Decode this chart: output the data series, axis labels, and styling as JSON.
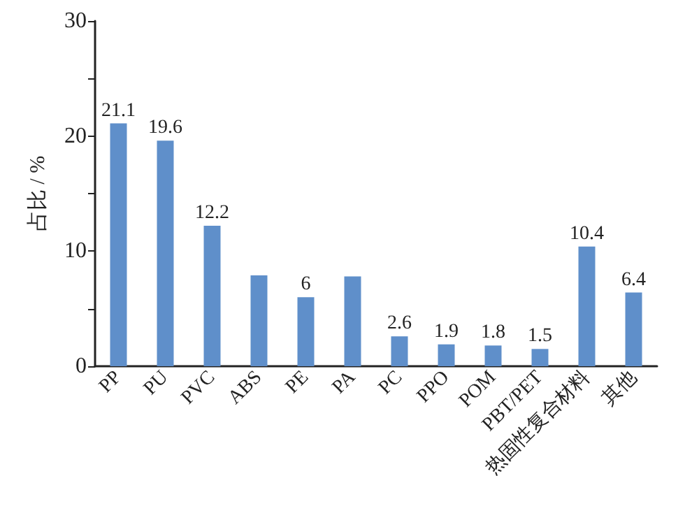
{
  "chart_data": {
    "type": "bar",
    "ylabel": "占比 / %",
    "categories": [
      "PP",
      "PU",
      "PVC",
      "ABS",
      "PE",
      "PA",
      "PC",
      "PPO",
      "POM",
      "PBT/PET",
      "热固性复合材料",
      "其他"
    ],
    "values": [
      21.1,
      19.6,
      12.2,
      7.9,
      6,
      7.8,
      2.6,
      1.9,
      1.8,
      1.5,
      10.4,
      6.4
    ],
    "value_labels": [
      "21.1",
      "19.6",
      "12.2",
      null,
      "6",
      null,
      "2.6",
      "1.9",
      "1.8",
      "1.5",
      "10.4",
      "6.4"
    ],
    "color": "#5f8fca",
    "ylim": [
      0,
      30
    ],
    "yticks": [
      0,
      {
        "value": 5,
        "label": null
      },
      10,
      {
        "value": 15,
        "label": null
      },
      20,
      {
        "value": 25,
        "label": null
      },
      30
    ],
    "grid": false
  }
}
